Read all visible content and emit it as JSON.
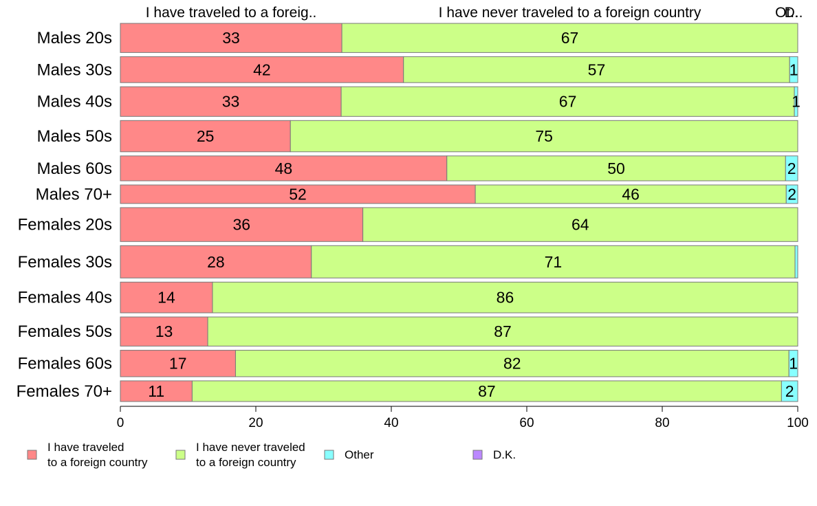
{
  "chart_data": {
    "type": "bar",
    "orientation": "horizontal",
    "stacked": true,
    "xlim": [
      0,
      100
    ],
    "x_ticks": [
      0,
      20,
      40,
      60,
      80,
      100
    ],
    "grid": false,
    "legend_position": "bottom",
    "column_headers": [
      "I have traveled to a foreig..",
      "I have never traveled to a foreign country",
      "Ot..",
      "D.."
    ],
    "categories": [
      "Males 20s",
      "Males 30s",
      "Males 40s",
      "Males 50s",
      "Males 60s",
      "Males 70+",
      "Females 20s",
      "Females 30s",
      "Females 40s",
      "Females 50s",
      "Females 60s",
      "Females 70+"
    ],
    "category_weights": [
      55,
      49,
      56,
      59,
      47,
      35,
      64,
      61,
      58,
      55,
      50,
      39
    ],
    "series": [
      {
        "name": "I have traveled to a foreign country",
        "legend_lines": [
          "I have traveled",
          "to a foreign country"
        ],
        "color": "#ff8888",
        "values": [
          32.7,
          41.8,
          32.6,
          25.1,
          48.2,
          52.4,
          35.8,
          28.2,
          13.6,
          12.9,
          17.0,
          10.6
        ],
        "labels": [
          "33",
          "42",
          "33",
          "25",
          "48",
          "52",
          "36",
          "28",
          "14",
          "13",
          "17",
          "11"
        ]
      },
      {
        "name": "I have never traveled to a foreign country",
        "legend_lines": [
          "I have never traveled",
          "to a foreign country"
        ],
        "color": "#ccff88",
        "values": [
          67.3,
          57.0,
          66.9,
          74.9,
          50.0,
          45.9,
          64.2,
          71.4,
          86.4,
          87.1,
          81.7,
          87.0
        ],
        "labels": [
          "67",
          "57",
          "67",
          "75",
          "50",
          "46",
          "64",
          "71",
          "86",
          "87",
          "82",
          "87"
        ]
      },
      {
        "name": "Other",
        "legend_lines": [
          "Other"
        ],
        "color": "#88ffff",
        "values": [
          0,
          1.2,
          0.5,
          0,
          1.8,
          1.7,
          0,
          0.4,
          0,
          0,
          1.3,
          2.4
        ],
        "labels": [
          "",
          "1",
          "1",
          "",
          "2",
          "2",
          "",
          "",
          "",
          "",
          "1",
          "2"
        ]
      },
      {
        "name": "D.K.",
        "legend_lines": [
          "D.K."
        ],
        "color": "#bb88ff",
        "values": [
          0,
          0,
          0,
          0,
          0,
          0,
          0,
          0,
          0,
          0,
          0,
          0
        ],
        "labels": [
          "",
          "",
          "",
          "",
          "",
          "",
          "",
          "",
          "",
          "",
          "",
          ""
        ]
      }
    ]
  }
}
